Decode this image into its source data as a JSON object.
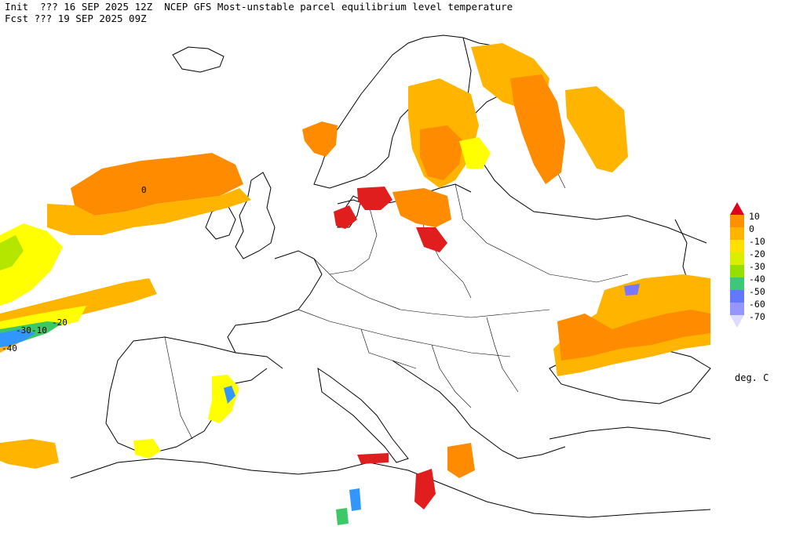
{
  "header": {
    "line1": "Init  ??? 16 SEP 2025 12Z  NCEP GFS Most-unstable parcel equilibrium level temperature",
    "line2": "Fcst ??? 19 SEP 2025 09Z"
  },
  "legend": {
    "units": "deg. C",
    "labels": [
      "10",
      "0",
      "-10",
      "-20",
      "-30",
      "-40",
      "-50",
      "-60",
      "-70"
    ],
    "colors": [
      "#ff9000",
      "#ffb400",
      "#ffe000",
      "#ffff00",
      "#c8e800",
      "#3cc878",
      "#32a0ff",
      "#7878ff",
      "#c8c8ff"
    ],
    "top_color": "#e0001e",
    "bottom_color": "#dcdcff"
  },
  "map": {
    "contour_labels": [
      "0",
      "-10",
      "-20",
      "-30",
      "-40"
    ],
    "field_colors": {
      "warm": "#e01e1e",
      "orange": "#ff8c00",
      "amber": "#ffb400",
      "yellow": "#ffff00",
      "lime": "#b4e600",
      "green": "#3cc864",
      "blue": "#3296ff",
      "purple": "#7878ff"
    }
  }
}
